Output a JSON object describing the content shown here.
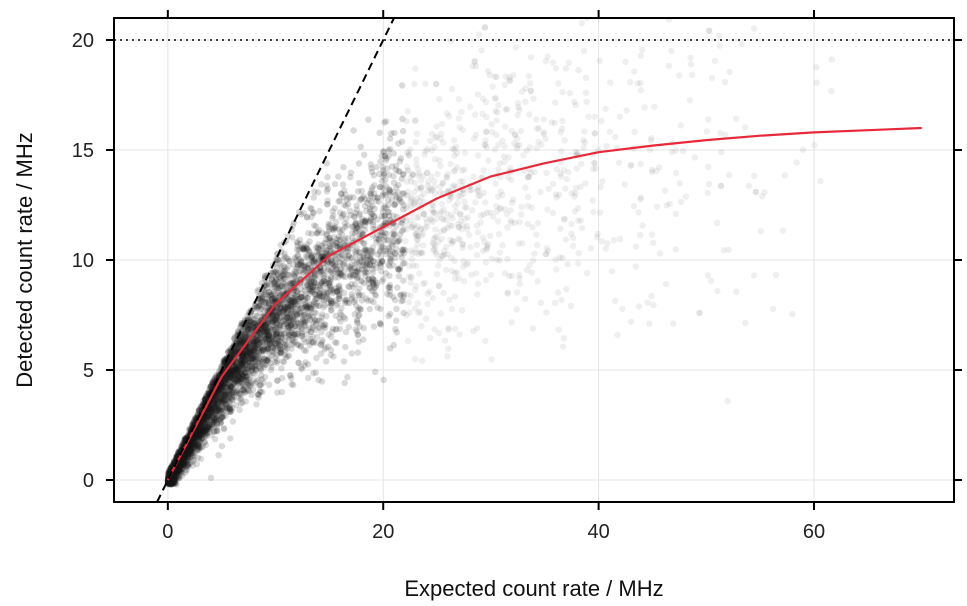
{
  "chart_data": {
    "type": "scatter",
    "title": "",
    "xlabel": "Expected count rate / MHz",
    "ylabel": "Detected count rate / MHz",
    "xlim": [
      -5,
      73
    ],
    "ylim": [
      -1,
      21
    ],
    "x_ticks": [
      0,
      20,
      40,
      60
    ],
    "y_ticks": [
      0,
      5,
      10,
      15,
      20
    ],
    "x_tick_labels": [
      "0",
      "20",
      "40",
      "60"
    ],
    "y_tick_labels": [
      "0",
      "5",
      "10",
      "15",
      "20"
    ],
    "grid": true,
    "legend": "none",
    "colors": {
      "points": "#1a1a1a",
      "fit_curve": "#e8293a",
      "identity_line": "#000000",
      "limit_line": "#000000",
      "grid": "#e4e4e4"
    },
    "series": [
      {
        "type": "line",
        "style": "solid",
        "x": [
          0,
          5,
          10,
          15,
          20,
          25,
          30,
          35,
          40,
          45,
          50,
          55,
          60,
          65,
          70
        ],
        "y": [
          0,
          4.7,
          8.0,
          10.2,
          11.5,
          12.8,
          13.8,
          14.4,
          14.9,
          15.2,
          15.45,
          15.65,
          15.8,
          15.9,
          16.0
        ]
      },
      {
        "type": "line",
        "style": "dashed",
        "x": [
          -1,
          21
        ],
        "y": [
          -1,
          21
        ]
      },
      {
        "type": "hline",
        "style": "dotted",
        "y": 20
      }
    ],
    "scatter_density": {
      "x": [
        0.5,
        2,
        4,
        6,
        8,
        10,
        12,
        15,
        18,
        20,
        22,
        25,
        28,
        30,
        33,
        36,
        40,
        45,
        55,
        60
      ],
      "y": [
        0.4,
        1.8,
        3.5,
        5.0,
        6.3,
        7.5,
        8.4,
        9.5,
        10.6,
        11.0,
        11.6,
        12.3,
        12.8,
        13.1,
        13.5,
        14.0,
        14.5,
        15.0,
        16.5,
        15.5
      ]
    }
  }
}
